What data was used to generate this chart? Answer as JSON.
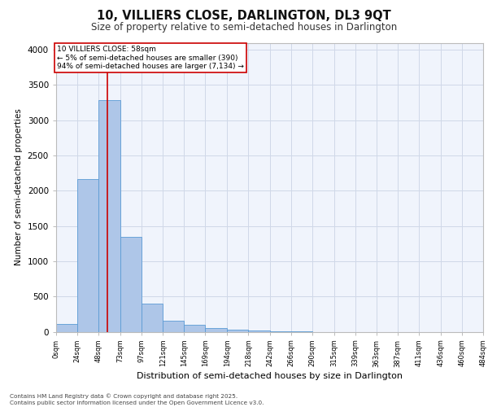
{
  "title1": "10, VILLIERS CLOSE, DARLINGTON, DL3 9QT",
  "title2": "Size of property relative to semi-detached houses in Darlington",
  "xlabel": "Distribution of semi-detached houses by size in Darlington",
  "ylabel": "Number of semi-detached properties",
  "property_size": 58,
  "annotation_title": "10 VILLIERS CLOSE: 58sqm",
  "annotation_line1": "← 5% of semi-detached houses are smaller (390)",
  "annotation_line2": "94% of semi-detached houses are larger (7,134) →",
  "footnote1": "Contains HM Land Registry data © Crown copyright and database right 2025.",
  "footnote2": "Contains public sector information licensed under the Open Government Licence v3.0.",
  "bin_edges": [
    0,
    24,
    48,
    73,
    97,
    121,
    145,
    169,
    194,
    218,
    242,
    266,
    290,
    315,
    339,
    363,
    387,
    411,
    436,
    460,
    484
  ],
  "bin_counts": [
    110,
    2170,
    3290,
    1340,
    400,
    155,
    100,
    55,
    30,
    15,
    5,
    2,
    0,
    0,
    0,
    0,
    0,
    0,
    0,
    0
  ],
  "bar_color": "#aec6e8",
  "bar_edge_color": "#5b9bd5",
  "vline_color": "#cc0000",
  "grid_color": "#d0d8e8",
  "bg_color": "#f0f4fc",
  "ylim": [
    0,
    4100
  ],
  "yticks": [
    0,
    500,
    1000,
    1500,
    2000,
    2500,
    3000,
    3500,
    4000
  ],
  "tick_labels": [
    "0sqm",
    "24sqm",
    "48sqm",
    "73sqm",
    "97sqm",
    "121sqm",
    "145sqm",
    "169sqm",
    "194sqm",
    "218sqm",
    "242sqm",
    "266sqm",
    "290sqm",
    "315sqm",
    "339sqm",
    "363sqm",
    "387sqm",
    "411sqm",
    "436sqm",
    "460sqm",
    "484sqm"
  ]
}
